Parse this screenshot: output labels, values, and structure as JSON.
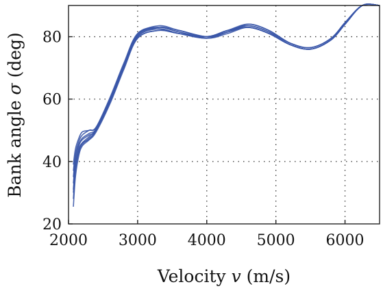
{
  "chart_data": {
    "type": "line",
    "xlabel": "Velocity v (m/s)",
    "xlabel_parts": {
      "prefix": "Velocity ",
      "var": "v",
      "suffix": " (m/s)"
    },
    "ylabel": "Bank angle σ (deg)",
    "ylabel_parts": {
      "prefix": "Bank angle ",
      "var": "σ",
      "suffix": " (deg)"
    },
    "xlim": [
      2000,
      6500
    ],
    "ylim": [
      20,
      90
    ],
    "xticks": [
      2000,
      3000,
      4000,
      5000,
      6000
    ],
    "xtick_labels": [
      "2000",
      "3000",
      "4000",
      "5000",
      "6000"
    ],
    "yticks": [
      20,
      40,
      60,
      80
    ],
    "ytick_labels": [
      "20",
      "40",
      "60",
      "80"
    ],
    "grid": true,
    "grid_style": "dotted",
    "line_color": "#3a57a8",
    "series": [
      {
        "x": [
          2070,
          2100,
          2150,
          2200,
          2300,
          2400,
          2600,
          2800,
          3000,
          3300,
          3600,
          4000,
          4300,
          4600,
          4900,
          5200,
          5500,
          5800,
          6000,
          6250,
          6500
        ],
        "y": [
          25.5,
          35,
          42,
          45,
          47,
          50,
          59,
          70,
          79.5,
          82,
          81,
          80,
          82,
          83,
          81,
          77.5,
          76,
          79,
          84,
          90,
          90
        ]
      },
      {
        "x": [
          2070,
          2100,
          2150,
          2200,
          2300,
          2400,
          2600,
          2800,
          3000,
          3300,
          3600,
          4000,
          4300,
          4600,
          4900,
          5200,
          5500,
          5800,
          6000,
          6250,
          6500
        ],
        "y": [
          28,
          37,
          43,
          45.5,
          47.5,
          50,
          59.5,
          70.5,
          80,
          82.5,
          81,
          79.5,
          81.5,
          83.5,
          81.5,
          77.5,
          76,
          79,
          84,
          90,
          90
        ]
      },
      {
        "x": [
          2070,
          2100,
          2150,
          2200,
          2300,
          2400,
          2600,
          2800,
          3000,
          3300,
          3600,
          4000,
          4300,
          4600,
          4900,
          5200,
          5500,
          5800,
          6000,
          6250,
          6500
        ],
        "y": [
          31,
          39,
          44,
          46,
          48,
          50.5,
          60,
          71,
          80.5,
          83,
          81.5,
          80,
          82,
          83.5,
          81.5,
          78,
          76.5,
          79.5,
          84.5,
          90,
          90
        ]
      },
      {
        "x": [
          2070,
          2100,
          2150,
          2200,
          2300,
          2400,
          2600,
          2800,
          3000,
          3300,
          3600,
          4000,
          4300,
          4600,
          4900,
          5200,
          5500,
          5800,
          6000,
          6250,
          6500
        ],
        "y": [
          33,
          40,
          45,
          47,
          48.5,
          50,
          59,
          70,
          80,
          83,
          82,
          80,
          81.5,
          83,
          81,
          77.5,
          76,
          79,
          84,
          90,
          90
        ]
      },
      {
        "x": [
          2070,
          2100,
          2150,
          2200,
          2300,
          2400,
          2600,
          2800,
          3000,
          3300,
          3600,
          4000,
          4300,
          4600,
          4900,
          5200,
          5500,
          5800,
          6000,
          6250,
          6500
        ],
        "y": [
          35,
          41.5,
          45.5,
          47.5,
          49,
          50.5,
          59.5,
          70.5,
          80.5,
          83.5,
          82,
          80,
          81.5,
          84,
          82,
          78,
          76.5,
          79.5,
          84.5,
          90,
          90
        ]
      },
      {
        "x": [
          2070,
          2100,
          2150,
          2200,
          2300,
          2400,
          2600,
          2800,
          3000,
          3300,
          3600,
          4000,
          4300,
          4600,
          4900,
          5200,
          5500,
          5800,
          6000,
          6250,
          6500
        ],
        "y": [
          37,
          42.5,
          46.5,
          48.5,
          50,
          51,
          60,
          71,
          81,
          83,
          81.5,
          79.5,
          81,
          83,
          81,
          77.5,
          76,
          79,
          84,
          90,
          90
        ]
      },
      {
        "x": [
          2070,
          2100,
          2150,
          2200,
          2300,
          2400,
          2600,
          2800,
          3000,
          3300,
          3600,
          4000,
          4300,
          4600,
          4900,
          5200,
          5500,
          5800,
          6000,
          6250,
          6500
        ],
        "y": [
          39,
          44,
          47.5,
          49.5,
          50,
          51,
          60.5,
          71.5,
          81,
          82.5,
          81,
          80,
          82,
          84,
          82,
          78,
          76.5,
          79.5,
          84.5,
          90,
          90
        ]
      },
      {
        "x": [
          2070,
          2100,
          2150,
          2200,
          2300,
          2400,
          2600,
          2800,
          3000,
          3300,
          3600,
          4000,
          4300,
          4600,
          4900,
          5200,
          5500,
          5800,
          6000,
          6250,
          6500
        ],
        "y": [
          30,
          38,
          43.5,
          46,
          47,
          49.5,
          58.5,
          69.5,
          79.5,
          82,
          81,
          79.5,
          81.5,
          83,
          81,
          77.5,
          76,
          79,
          84,
          90,
          90
        ]
      }
    ]
  }
}
